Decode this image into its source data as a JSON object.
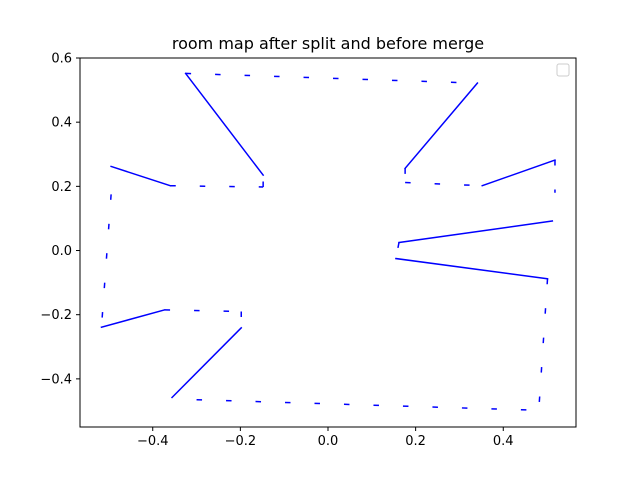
{
  "chart_data": {
    "type": "line",
    "title": "room map after split and before merge",
    "xlabel": "",
    "ylabel": "",
    "xlim": [
      -0.566,
      0.566
    ],
    "ylim": [
      -0.55,
      0.6
    ],
    "xticks": [
      -0.4,
      -0.2,
      0.0,
      0.2,
      0.4
    ],
    "xtick_labels": [
      "−0.4",
      "−0.2",
      "0.0",
      "0.2",
      "0.4"
    ],
    "yticks": [
      -0.4,
      -0.2,
      0.0,
      0.2,
      0.4,
      0.6
    ],
    "ytick_labels": [
      "−0.4",
      "−0.2",
      "0.0",
      "0.2",
      "0.4",
      "0.6"
    ],
    "grid": false,
    "legend": {
      "placement": "top-right",
      "entries": []
    },
    "line_color": "#0000ff",
    "solid_segments": [
      {
        "x": [
          -0.325,
          -0.148
        ],
        "y": [
          0.552,
          0.235
        ]
      },
      {
        "x": [
          -0.495,
          -0.36
        ],
        "y": [
          0.262,
          0.202
        ]
      },
      {
        "x": [
          0.176,
          0.341
        ],
        "y": [
          0.256,
          0.522
        ]
      },
      {
        "x": [
          0.352,
          0.518
        ],
        "y": [
          0.202,
          0.282
        ]
      },
      {
        "x": [
          0.162,
          0.512
        ],
        "y": [
          0.025,
          0.092
        ]
      },
      {
        "x": [
          0.155,
          0.501
        ],
        "y": [
          -0.025,
          -0.088
        ]
      },
      {
        "x": [
          -0.517,
          -0.373
        ],
        "y": [
          -0.239,
          -0.185
        ]
      },
      {
        "x": [
          -0.356,
          -0.198
        ],
        "y": [
          -0.458,
          -0.241
        ]
      }
    ],
    "dashed_segments": [
      {
        "x": [
          -0.325,
          0.331
        ],
        "y": [
          0.552,
          0.522
        ]
      },
      {
        "x": [
          -0.36,
          -0.148
        ],
        "y": [
          0.202,
          0.198
        ]
      },
      {
        "x": [
          -0.148,
          -0.148
        ],
        "y": [
          0.198,
          0.235
        ]
      },
      {
        "x": [
          0.176,
          0.176
        ],
        "y": [
          0.256,
          0.212
        ]
      },
      {
        "x": [
          0.176,
          0.352
        ],
        "y": [
          0.212,
          0.202
        ]
      },
      {
        "x": [
          0.518,
          0.518
        ],
        "y": [
          0.282,
          0.18
        ]
      },
      {
        "x": [
          0.162,
          0.155
        ],
        "y": [
          0.025,
          -0.025
        ]
      },
      {
        "x": [
          -0.495,
          -0.517
        ],
        "y": [
          0.175,
          -0.239
        ]
      },
      {
        "x": [
          -0.373,
          -0.198
        ],
        "y": [
          -0.185,
          -0.19
        ]
      },
      {
        "x": [
          -0.198,
          -0.198
        ],
        "y": [
          -0.19,
          -0.241
        ]
      },
      {
        "x": [
          -0.3,
          0.481
        ],
        "y": [
          -0.465,
          -0.498
        ]
      },
      {
        "x": [
          0.501,
          0.481
        ],
        "y": [
          -0.088,
          -0.498
        ]
      }
    ]
  }
}
